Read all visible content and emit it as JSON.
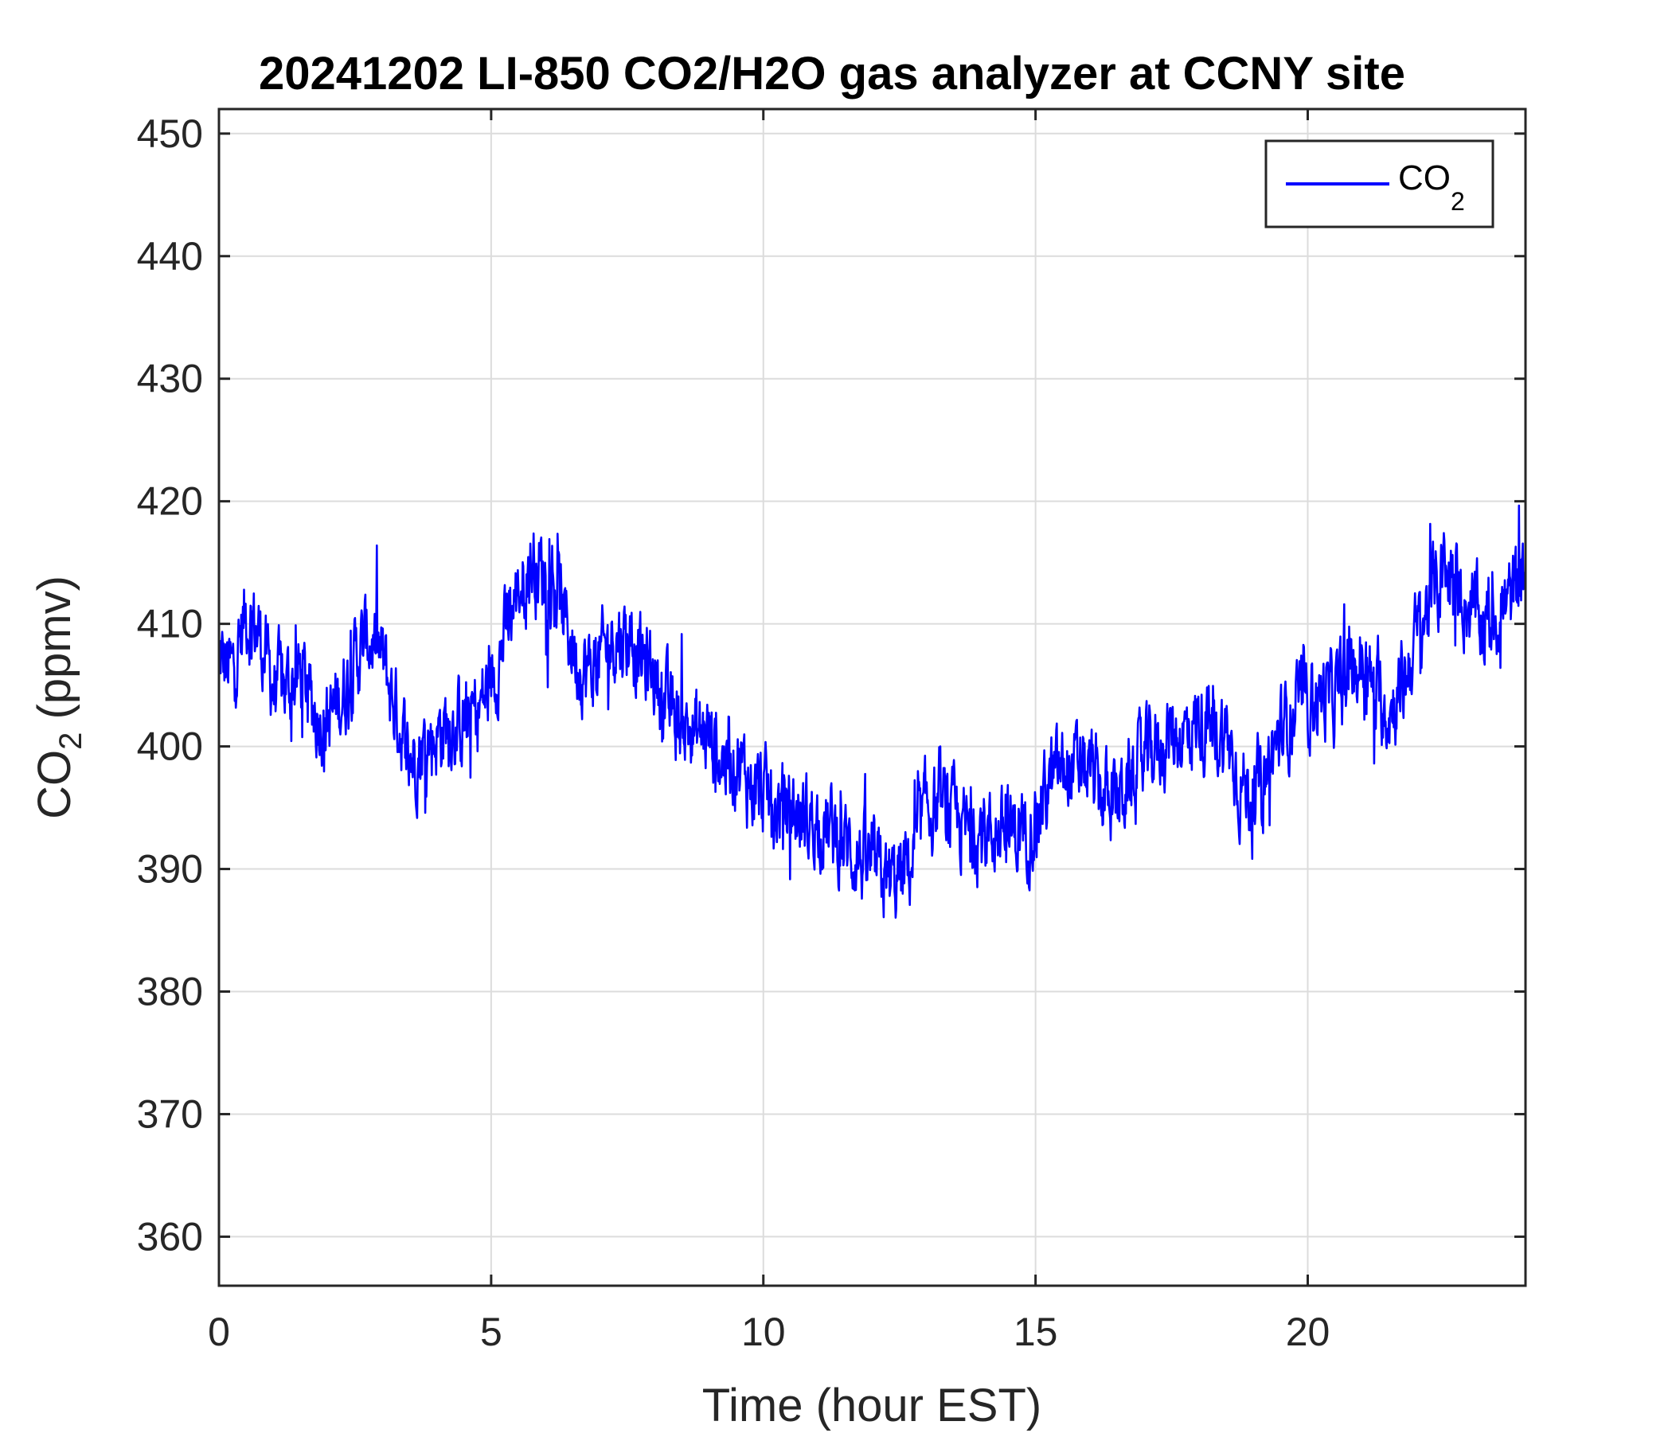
{
  "chart_data": {
    "type": "line",
    "title": "20241202 LI-850 CO2/H2O gas analyzer at CCNY site",
    "xlabel": "Time (hour EST)",
    "ylabel": {
      "main": "CO",
      "sub": "2",
      "rest": " (ppmv)"
    },
    "xlim": [
      0,
      24
    ],
    "ylim": [
      356,
      452
    ],
    "xticks": [
      0,
      5,
      10,
      15,
      20
    ],
    "yticks": [
      360,
      370,
      380,
      390,
      400,
      410,
      420,
      430,
      440,
      450
    ],
    "grid": true,
    "legend_position": "top-right",
    "series": [
      {
        "name": {
          "main": "CO",
          "sub": "2"
        },
        "color": "#0000ff",
        "noise_amplitude": 3.5,
        "x": [
          0,
          0.25,
          0.5,
          0.75,
          1.0,
          1.25,
          1.5,
          1.75,
          2.0,
          2.25,
          2.5,
          2.75,
          3.0,
          3.25,
          3.5,
          3.75,
          4.0,
          4.25,
          4.5,
          4.75,
          5.0,
          5.25,
          5.5,
          5.75,
          6.0,
          6.25,
          6.5,
          6.75,
          7.0,
          7.25,
          7.5,
          7.75,
          8.0,
          8.25,
          8.5,
          8.75,
          9.0,
          9.25,
          9.5,
          9.75,
          10.0,
          10.25,
          10.5,
          10.75,
          11.0,
          11.25,
          11.5,
          11.75,
          12.0,
          12.25,
          12.5,
          12.75,
          13.0,
          13.25,
          13.5,
          13.75,
          14.0,
          14.25,
          14.5,
          14.75,
          15.0,
          15.25,
          15.5,
          15.75,
          16.0,
          16.25,
          16.5,
          16.75,
          17.0,
          17.25,
          17.5,
          17.75,
          18.0,
          18.25,
          18.5,
          18.75,
          19.0,
          19.25,
          19.5,
          19.75,
          20.0,
          20.25,
          20.5,
          20.75,
          21.0,
          21.25,
          21.5,
          21.75,
          22.0,
          22.25,
          22.5,
          22.75,
          23.0,
          23.25,
          23.5,
          23.75,
          24.0
        ],
        "values": [
          407,
          406,
          411,
          409,
          405,
          405,
          406,
          403,
          402,
          404,
          407,
          409,
          407,
          403,
          399,
          400,
          401,
          402,
          402,
          403,
          405,
          409,
          413,
          415,
          414,
          412,
          408,
          406,
          407,
          409,
          409,
          407,
          406,
          403,
          402,
          401,
          401,
          399,
          399,
          397,
          396,
          395,
          395,
          394,
          394,
          393,
          392,
          391,
          390,
          389,
          389,
          391,
          395,
          395,
          394,
          393,
          393,
          393,
          393,
          393,
          394,
          397,
          398,
          398,
          398,
          396,
          396,
          397,
          399,
          400,
          401,
          401,
          402,
          401,
          401,
          397,
          396,
          398,
          401,
          403,
          404,
          404,
          404,
          406,
          407,
          404,
          403,
          405,
          409,
          412,
          414,
          413,
          411,
          410,
          411,
          412,
          414
        ]
      }
    ]
  }
}
